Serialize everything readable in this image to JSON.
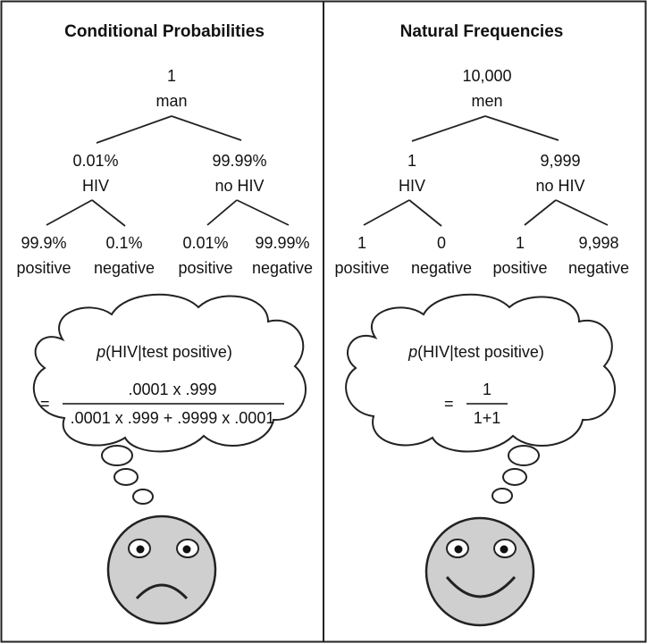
{
  "left": {
    "title": "Conditional Probabilities",
    "root_count": "1",
    "root_label": "man",
    "branch_left_value": "0.01%",
    "branch_left_label": "HIV",
    "branch_right_value": "99.99%",
    "branch_right_label": "no HIV",
    "leaves": [
      {
        "value": "99.9%",
        "label": "positive"
      },
      {
        "value": "0.1%",
        "label": "negative"
      },
      {
        "value": "0.01%",
        "label": "positive"
      },
      {
        "value": "99.99%",
        "label": "negative"
      }
    ],
    "formula": {
      "p": "p",
      "expr": "(HIV|test positive)",
      "equals": "=",
      "numerator": ".0001 x .999",
      "denominator": ".0001 x .999 + .9999 x .0001"
    },
    "face_mood": "sad"
  },
  "right": {
    "title": "Natural Frequencies",
    "root_count": "10,000",
    "root_label": "men",
    "branch_left_value": "1",
    "branch_left_label": "HIV",
    "branch_right_value": "9,999",
    "branch_right_label": "no HIV",
    "leaves": [
      {
        "value": "1",
        "label": "positive"
      },
      {
        "value": "0",
        "label": "negative"
      },
      {
        "value": "1",
        "label": "positive"
      },
      {
        "value": "9,998",
        "label": "negative"
      }
    ],
    "formula": {
      "p": "p",
      "expr": "(HIV|test positive)",
      "equals": "=",
      "numerator": "1",
      "denominator": "1+1"
    },
    "face_mood": "happy"
  }
}
